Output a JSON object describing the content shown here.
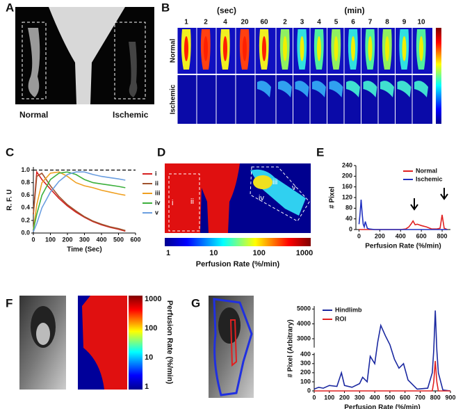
{
  "figure": {
    "panel_labels": [
      "A",
      "B",
      "C",
      "D",
      "E",
      "F",
      "G"
    ],
    "A": {
      "labels": [
        "Normal",
        "Ischemic"
      ]
    },
    "B": {
      "sec_label": "(sec)",
      "sec_times": [
        1,
        2,
        4,
        20,
        60
      ],
      "min_label": "(min)",
      "min_times": [
        2,
        3,
        4,
        5,
        6,
        7,
        8,
        9,
        10
      ],
      "row_labels": [
        "Normal",
        "Ischemic"
      ]
    },
    "D": {
      "roi_labels": [
        "i",
        "ii",
        "iii",
        "iv",
        "v"
      ],
      "colorbar": {
        "label": "Perfusion Rate (%/min)",
        "ticks": [
          1,
          10,
          100,
          1000
        ]
      }
    },
    "F": {
      "colorbar": {
        "label": "Perfusion Rate (%/min)",
        "ticks": [
          1,
          10,
          100,
          1000
        ]
      }
    }
  },
  "chart_data": [
    {
      "type": "line",
      "xlabel": "Time (Sec)",
      "ylabel": "R. F. U",
      "x": [
        0,
        20,
        50,
        100,
        150,
        200,
        250,
        300,
        350,
        400,
        450,
        500,
        540
      ],
      "series": [
        {
          "name": "i",
          "color": "#d62020",
          "values": [
            0.3,
            0.97,
            0.85,
            0.7,
            0.55,
            0.43,
            0.33,
            0.25,
            0.18,
            0.13,
            0.09,
            0.06,
            0.03
          ]
        },
        {
          "name": "ii",
          "color": "#a0522d",
          "values": [
            0.3,
            0.9,
            0.95,
            0.75,
            0.58,
            0.45,
            0.35,
            0.26,
            0.19,
            0.14,
            0.1,
            0.07,
            0.04
          ]
        },
        {
          "name": "iii",
          "color": "#f0a020",
          "values": [
            0.05,
            0.45,
            0.8,
            0.95,
            0.97,
            0.9,
            0.8,
            0.75,
            0.72,
            0.68,
            0.65,
            0.62,
            0.6
          ]
        },
        {
          "name": "iv",
          "color": "#3cb03c",
          "values": [
            0.05,
            0.3,
            0.6,
            0.85,
            0.95,
            0.97,
            0.93,
            0.85,
            0.8,
            0.78,
            0.76,
            0.74,
            0.72
          ]
        },
        {
          "name": "v",
          "color": "#6a9ee0",
          "values": [
            0.02,
            0.15,
            0.4,
            0.65,
            0.82,
            0.93,
            0.97,
            0.97,
            0.93,
            0.9,
            0.88,
            0.86,
            0.84
          ]
        }
      ],
      "xlim": [
        0,
        600
      ],
      "xticks": [
        0,
        100,
        200,
        300,
        400,
        500,
        600
      ],
      "ylim": [
        0,
        1.05
      ],
      "yticks": [
        {
          "value": 0,
          "label": "0.0"
        },
        {
          "value": 0.2,
          "label": "0.2"
        },
        {
          "value": 0.4,
          "label": "0.4"
        },
        {
          "value": 0.6,
          "label": "0.6"
        },
        {
          "value": 0.8,
          "label": "0.8"
        },
        {
          "value": 1,
          "label": "1.0"
        }
      ],
      "reference_line": 1,
      "legend": "right"
    },
    {
      "type": "line",
      "xlabel": "Perfusion Rate (%/min)",
      "ylabel": "# Pixel",
      "x": [
        0,
        10,
        20,
        30,
        40,
        50,
        60,
        80,
        100,
        150,
        200,
        300,
        400,
        450,
        480,
        500,
        520,
        540,
        560,
        600,
        650,
        700,
        750,
        780,
        800,
        820,
        850
      ],
      "series": [
        {
          "name": "Normal",
          "color": "#e02020",
          "values": [
            0,
            0,
            0,
            0,
            0,
            0,
            0,
            0,
            0,
            0,
            0,
            0,
            0,
            2,
            10,
            20,
            32,
            18,
            20,
            15,
            10,
            2,
            2,
            5,
            55,
            5,
            0
          ]
        },
        {
          "name": "Ischemic",
          "color": "#2030c0",
          "values": [
            20,
            60,
            112,
            60,
            20,
            10,
            30,
            5,
            2,
            0,
            0,
            0,
            0,
            0,
            0,
            0,
            0,
            0,
            0,
            0,
            0,
            0,
            0,
            0,
            0,
            0,
            0
          ]
        }
      ],
      "xlim": [
        -30,
        880
      ],
      "xticks": [
        0,
        200,
        400,
        600,
        800
      ],
      "ylim": [
        0,
        240
      ],
      "yticks": [
        0,
        40,
        80,
        120,
        160,
        200,
        240
      ],
      "legend": "upper right"
    },
    {
      "type": "line",
      "xlabel": "Perfusion Rate (%/min)",
      "ylabel": "# Pixel  (Arbitrary)",
      "x": [
        0,
        30,
        60,
        100,
        150,
        180,
        200,
        250,
        300,
        320,
        350,
        370,
        400,
        420,
        440,
        470,
        500,
        530,
        560,
        590,
        620,
        680,
        750,
        780,
        790,
        800,
        810,
        820,
        850,
        900
      ],
      "series": [
        {
          "name": "Hindlimb",
          "color": "#1a28a0",
          "values": [
            20,
            40,
            30,
            60,
            50,
            200,
            60,
            40,
            80,
            150,
            100,
            380,
            300,
            2800,
            3900,
            3200,
            2600,
            350,
            250,
            300,
            120,
            20,
            30,
            200,
            1500,
            4900,
            1500,
            200,
            10,
            0
          ]
        },
        {
          "name": "ROI",
          "color": "#e02020",
          "values": [
            0,
            0,
            0,
            0,
            0,
            0,
            0,
            0,
            0,
            0,
            0,
            0,
            0,
            0,
            0,
            0,
            0,
            0,
            0,
            0,
            0,
            0,
            0,
            0,
            100,
            330,
            100,
            0,
            0,
            0
          ]
        }
      ],
      "xlim": [
        0,
        900
      ],
      "xticks": [
        0,
        100,
        200,
        300,
        400,
        500,
        600,
        700,
        800,
        900
      ],
      "ylim": [
        0,
        5200
      ],
      "axis_break": [
        420,
        2400
      ],
      "yticks": [
        0,
        100,
        200,
        300,
        400,
        3000,
        4000,
        5000
      ],
      "legend": "upper left"
    }
  ]
}
